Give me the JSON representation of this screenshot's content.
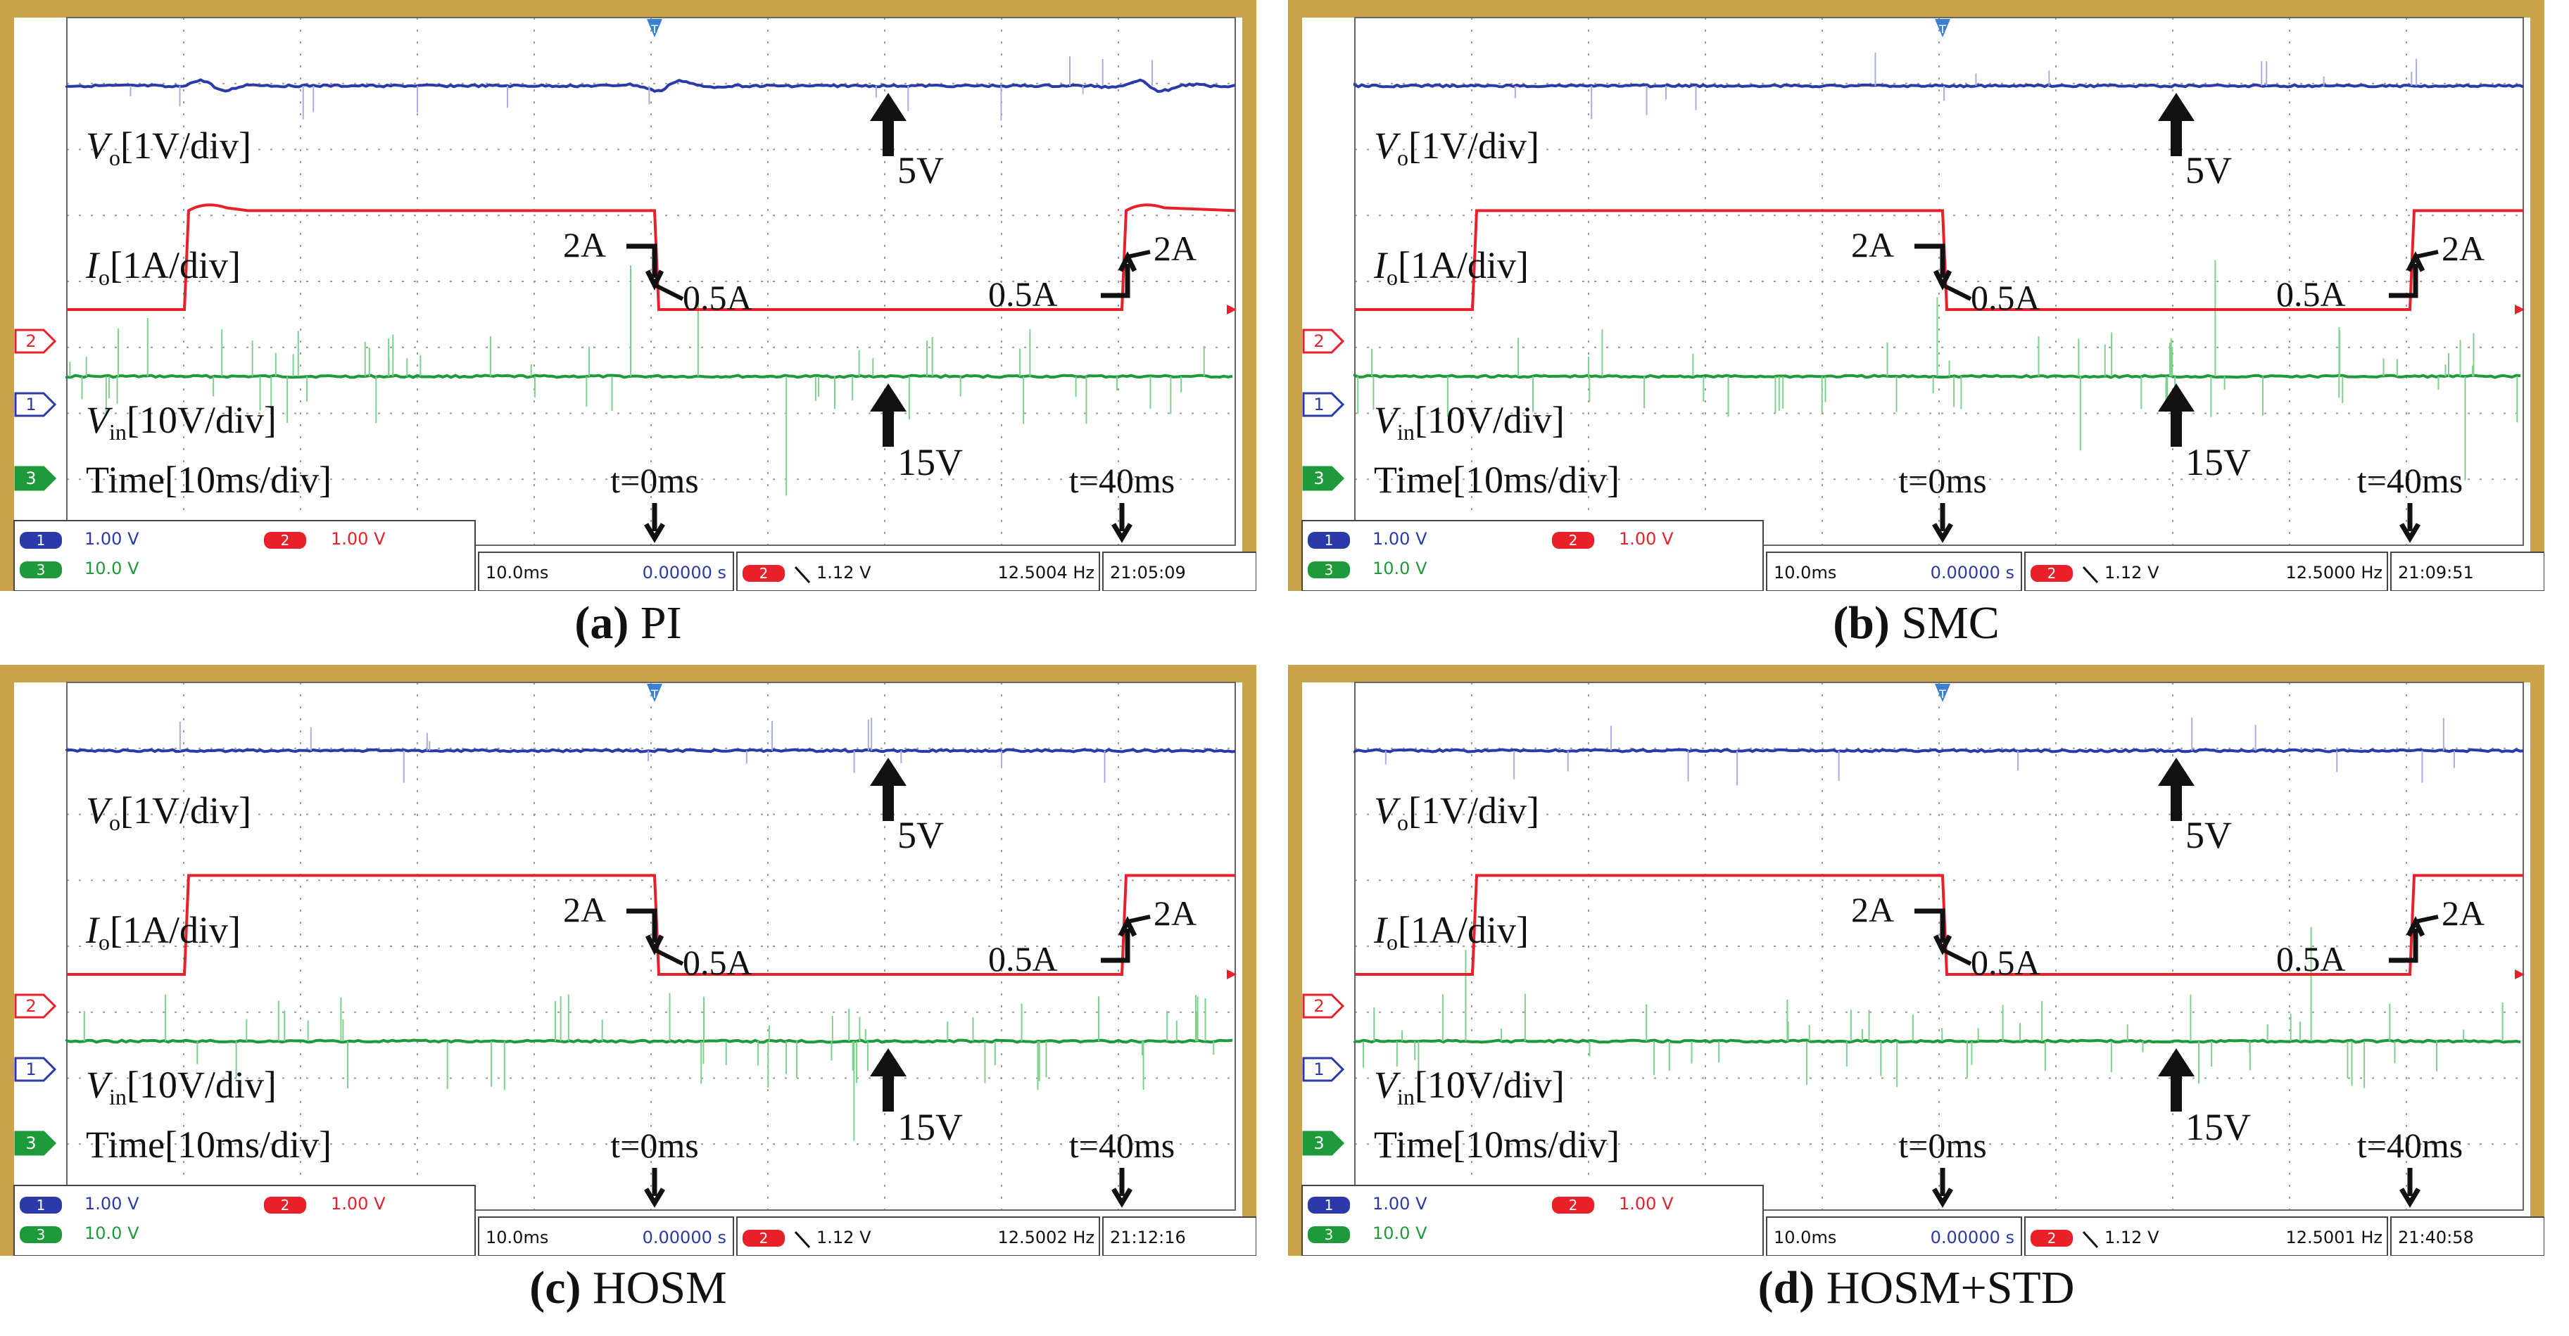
{
  "chart_data": [
    {
      "type": "line",
      "caption_tag": "(a)",
      "caption_name": "PI",
      "label_vo_sym": "V",
      "label_vo_sub": "o",
      "label_vo_scale": "[1V/div]",
      "label_io_sym": "I",
      "label_io_sub": "o",
      "label_io_scale": "[1A/div]",
      "label_vin_sym": "V",
      "label_vin_sub": "in",
      "label_vin_scale": "[10V/div]",
      "label_time": "Time[10ms/div]",
      "vo_level": "5V",
      "vin_level": "15V",
      "step_down_from": "2A",
      "step_down_to": "0.5A",
      "step_up_from": "0.5A",
      "step_up_to": "2A",
      "t0_label": "t=0ms",
      "t40_label": "t=40ms",
      "x": [
        -25,
        0,
        40,
        45
      ],
      "series": [
        {
          "values": [
            2,
            2,
            0.5,
            2
          ]
        }
      ],
      "overshoot": true,
      "status": {
        "ch1_scale": "1.00 V",
        "ch2_scale": "1.00 V",
        "ch3_scale": "10.0 V",
        "timebase": "10.0ms",
        "delay": "0.00000 s",
        "trigger_level": "1.12 V",
        "frequency": "12.5004 Hz",
        "clock": "21:05:09"
      }
    },
    {
      "type": "line",
      "caption_tag": "(b)",
      "caption_name": "SMC",
      "label_vo_sym": "V",
      "label_vo_sub": "o",
      "label_vo_scale": "[1V/div]",
      "label_io_sym": "I",
      "label_io_sub": "o",
      "label_io_scale": "[1A/div]",
      "label_vin_sym": "V",
      "label_vin_sub": "in",
      "label_vin_scale": "[10V/div]",
      "label_time": "Time[10ms/div]",
      "vo_level": "5V",
      "vin_level": "15V",
      "step_down_from": "2A",
      "step_down_to": "0.5A",
      "step_up_from": "0.5A",
      "step_up_to": "2A",
      "t0_label": "t=0ms",
      "t40_label": "t=40ms",
      "x": [
        -25,
        0,
        40,
        45
      ],
      "series": [
        {
          "values": [
            2,
            2,
            0.5,
            2
          ]
        }
      ],
      "overshoot": false,
      "status": {
        "ch1_scale": "1.00 V",
        "ch2_scale": "1.00 V",
        "ch3_scale": "10.0 V",
        "timebase": "10.0ms",
        "delay": "0.00000 s",
        "trigger_level": "1.12 V",
        "frequency": "12.5000 Hz",
        "clock": "21:09:51"
      }
    },
    {
      "type": "line",
      "caption_tag": "(c)",
      "caption_name": "HOSM",
      "label_vo_sym": "V",
      "label_vo_sub": "o",
      "label_vo_scale": "[1V/div]",
      "label_io_sym": "I",
      "label_io_sub": "o",
      "label_io_scale": "[1A/div]",
      "label_vin_sym": "V",
      "label_vin_sub": "in",
      "label_vin_scale": "[10V/div]",
      "label_time": "Time[10ms/div]",
      "vo_level": "5V",
      "vin_level": "15V",
      "step_down_from": "2A",
      "step_down_to": "0.5A",
      "step_up_from": "0.5A",
      "step_up_to": "2A",
      "t0_label": "t=0ms",
      "t40_label": "t=40ms",
      "x": [
        -25,
        0,
        40,
        45
      ],
      "series": [
        {
          "values": [
            2,
            2,
            0.5,
            2
          ]
        }
      ],
      "overshoot": false,
      "status": {
        "ch1_scale": "1.00 V",
        "ch2_scale": "1.00 V",
        "ch3_scale": "10.0 V",
        "timebase": "10.0ms",
        "delay": "0.00000 s",
        "trigger_level": "1.12 V",
        "frequency": "12.5002 Hz",
        "clock": "21:12:16"
      }
    },
    {
      "type": "line",
      "caption_tag": "(d)",
      "caption_name": "HOSM+STD",
      "label_vo_sym": "V",
      "label_vo_sub": "o",
      "label_vo_scale": "[1V/div]",
      "label_io_sym": "I",
      "label_io_sub": "o",
      "label_io_scale": "[1A/div]",
      "label_vin_sym": "V",
      "label_vin_sub": "in",
      "label_vin_scale": "[10V/div]",
      "label_time": "Time[10ms/div]",
      "vo_level": "5V",
      "vin_level": "15V",
      "step_down_from": "2A",
      "step_down_to": "0.5A",
      "step_up_from": "0.5A",
      "step_up_to": "2A",
      "t0_label": "t=0ms",
      "t40_label": "t=40ms",
      "x": [
        -25,
        0,
        40,
        45
      ],
      "series": [
        {
          "values": [
            2,
            2,
            0.5,
            2
          ]
        }
      ],
      "overshoot": false,
      "status": {
        "ch1_scale": "1.00 V",
        "ch2_scale": "1.00 V",
        "ch3_scale": "10.0 V",
        "timebase": "10.0ms",
        "delay": "0.00000 s",
        "trigger_level": "1.12 V",
        "frequency": "12.5001 Hz",
        "clock": "21:40:58"
      }
    }
  ],
  "colors": {
    "vo": "#2b3aa8",
    "io": "#e8202a",
    "vin": "#1f9a3a",
    "frame": "#c9a24a",
    "grid": "#9a9a9a"
  }
}
